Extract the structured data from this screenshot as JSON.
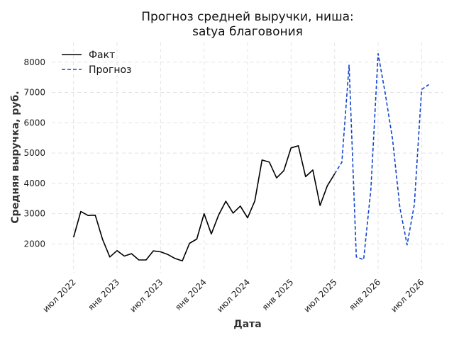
{
  "chart_data": {
    "type": "line",
    "title_lines": [
      "Прогноз средней выручки, ниша:",
      "satya благовония"
    ],
    "xlabel": "Дата",
    "ylabel": "Средняя выручка, руб.",
    "x_ticks": [
      "2022-07",
      "2023-01",
      "2023-07",
      "2024-01",
      "2024-07",
      "2025-01",
      "2025-07",
      "2026-01",
      "2026-07"
    ],
    "x_tick_labels": [
      "июл 2022",
      "янв 2023",
      "июл 2023",
      "янв 2024",
      "июл 2024",
      "янв 2025",
      "июл 2025",
      "янв 2026",
      "июл 2026"
    ],
    "y_ticks": [
      2000,
      3000,
      4000,
      5000,
      6000,
      7000,
      8000
    ],
    "y_tick_labels": [
      "2000",
      "3000",
      "4000",
      "5000",
      "6000",
      "7000",
      "8000"
    ],
    "xlim": [
      "2022-04",
      "2026-10"
    ],
    "ylim": [
      1050,
      8650
    ],
    "grid": true,
    "legend_position": "top-left",
    "series": [
      {
        "name": "Факт",
        "color": "#000000",
        "style": "solid",
        "x": [
          "2022-07",
          "2022-08",
          "2022-09",
          "2022-10",
          "2022-11",
          "2022-12",
          "2023-01",
          "2023-02",
          "2023-03",
          "2023-04",
          "2023-05",
          "2023-06",
          "2023-07",
          "2023-08",
          "2023-09",
          "2023-10",
          "2023-11",
          "2023-12",
          "2024-01",
          "2024-02",
          "2024-03",
          "2024-04",
          "2024-05",
          "2024-06",
          "2024-07",
          "2024-08",
          "2024-09",
          "2024-10",
          "2024-11",
          "2024-12",
          "2025-01",
          "2025-02",
          "2025-03",
          "2025-04",
          "2025-05",
          "2025-06",
          "2025-07"
        ],
        "y": [
          2220,
          3070,
          2940,
          2950,
          2150,
          1570,
          1780,
          1600,
          1680,
          1470,
          1470,
          1770,
          1740,
          1650,
          1520,
          1440,
          2020,
          2160,
          3000,
          2330,
          2950,
          3410,
          3020,
          3250,
          2860,
          3420,
          4770,
          4700,
          4180,
          4420,
          5170,
          5240,
          4220,
          4440,
          3270,
          3920,
          4310
        ]
      },
      {
        "name": "Прогноз",
        "color": "#1144cc",
        "style": "dashed",
        "x": [
          "2025-07",
          "2025-08",
          "2025-09",
          "2025-10",
          "2025-11",
          "2025-12",
          "2026-01",
          "2026-02",
          "2026-03",
          "2026-04",
          "2026-05",
          "2026-06",
          "2026-07",
          "2026-08"
        ],
        "y": [
          4310,
          4700,
          7900,
          1570,
          1480,
          3800,
          8280,
          6950,
          5450,
          3200,
          1970,
          3300,
          7100,
          7260
        ]
      }
    ]
  }
}
